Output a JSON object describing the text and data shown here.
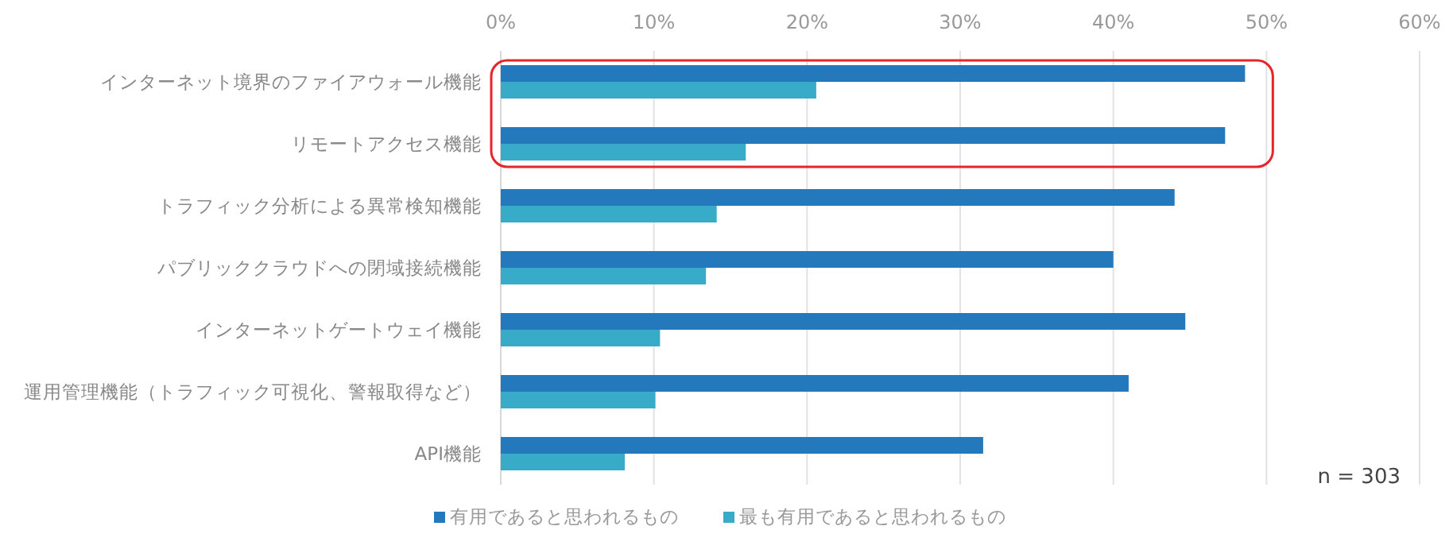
{
  "chart_data": {
    "type": "bar",
    "orientation": "horizontal",
    "categories": [
      "インターネット境界のファイアウォール機能",
      "リモートアクセス機能",
      "トラフィック分析による異常検知機能",
      "パブリッククラウドへの閉域接続機能",
      "インターネットゲートウェイ機能",
      "運用管理機能（トラフィック可視化、警報取得など）",
      "API機能"
    ],
    "series": [
      {
        "name": "有用であると思われるもの",
        "color": "#2479bd",
        "values": [
          48.6,
          47.3,
          44.0,
          40.0,
          44.7,
          41.0,
          31.5
        ]
      },
      {
        "name": "最も有用であると思われるもの",
        "color": "#37abc8",
        "values": [
          20.6,
          16.0,
          14.1,
          13.4,
          10.4,
          10.1,
          8.1
        ]
      }
    ],
    "xlim": [
      0,
      60
    ],
    "xticks": [
      {
        "value": 0,
        "label": "0%"
      },
      {
        "value": 10,
        "label": "10%"
      },
      {
        "value": 20,
        "label": "20%"
      },
      {
        "value": 30,
        "label": "30%"
      },
      {
        "value": 40,
        "label": "40%"
      },
      {
        "value": 50,
        "label": "50%"
      },
      {
        "value": 60,
        "label": "60%"
      }
    ],
    "grid": "x",
    "legend": "bottom",
    "annotations": [
      "n = 303"
    ]
  }
}
